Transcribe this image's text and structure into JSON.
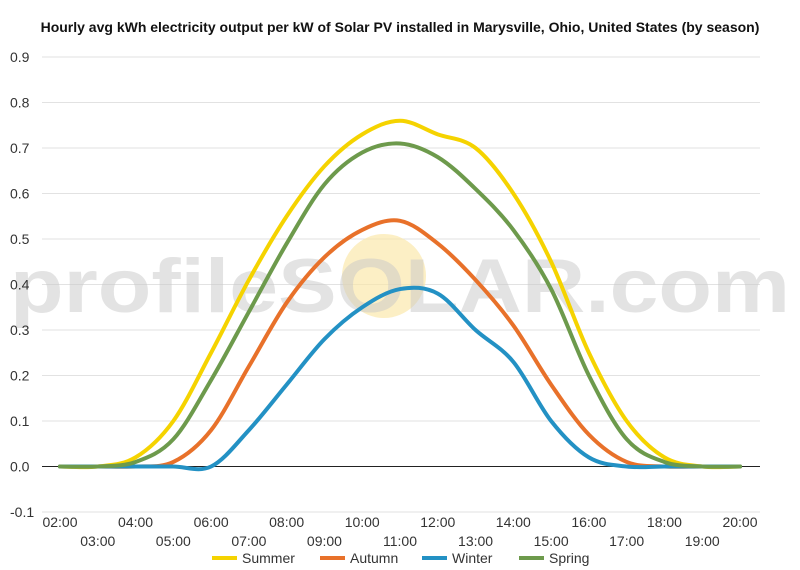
{
  "chart_data": {
    "type": "line",
    "title": "Hourly avg kWh electricity output per kW of Solar PV installed in Marysville, Ohio, United States (by season)",
    "watermark": "profileSOLAR.com",
    "x": [
      "02:00",
      "03:00",
      "04:00",
      "05:00",
      "06:00",
      "07:00",
      "08:00",
      "09:00",
      "10:00",
      "11:00",
      "12:00",
      "13:00",
      "14:00",
      "15:00",
      "16:00",
      "17:00",
      "18:00",
      "19:00",
      "20:00"
    ],
    "ylim": [
      -0.1,
      0.9
    ],
    "yticks": [
      "-0.1",
      "0.0",
      "0.1",
      "0.2",
      "0.3",
      "0.4",
      "0.5",
      "0.6",
      "0.7",
      "0.8",
      "0.9"
    ],
    "grid": true,
    "legend_position": "bottom",
    "series": [
      {
        "name": "Summer",
        "color": "#f5d300",
        "values": [
          0.0,
          0.0,
          0.02,
          0.1,
          0.25,
          0.41,
          0.55,
          0.66,
          0.73,
          0.76,
          0.73,
          0.7,
          0.6,
          0.45,
          0.25,
          0.1,
          0.02,
          0.0,
          0.0
        ]
      },
      {
        "name": "Autumn",
        "color": "#e8712a",
        "values": [
          0.0,
          0.0,
          0.0,
          0.01,
          0.08,
          0.22,
          0.36,
          0.46,
          0.52,
          0.54,
          0.49,
          0.41,
          0.31,
          0.18,
          0.07,
          0.01,
          0.0,
          0.0,
          0.0
        ]
      },
      {
        "name": "Winter",
        "color": "#2391c4",
        "values": [
          0.0,
          0.0,
          0.0,
          0.0,
          0.0,
          0.08,
          0.18,
          0.28,
          0.35,
          0.39,
          0.38,
          0.3,
          0.23,
          0.1,
          0.02,
          0.0,
          0.0,
          0.0,
          0.0
        ]
      },
      {
        "name": "Spring",
        "color": "#6d9a4c",
        "values": [
          0.0,
          0.0,
          0.01,
          0.06,
          0.19,
          0.34,
          0.49,
          0.62,
          0.69,
          0.71,
          0.68,
          0.61,
          0.52,
          0.39,
          0.2,
          0.06,
          0.01,
          0.0,
          0.0
        ]
      }
    ]
  }
}
